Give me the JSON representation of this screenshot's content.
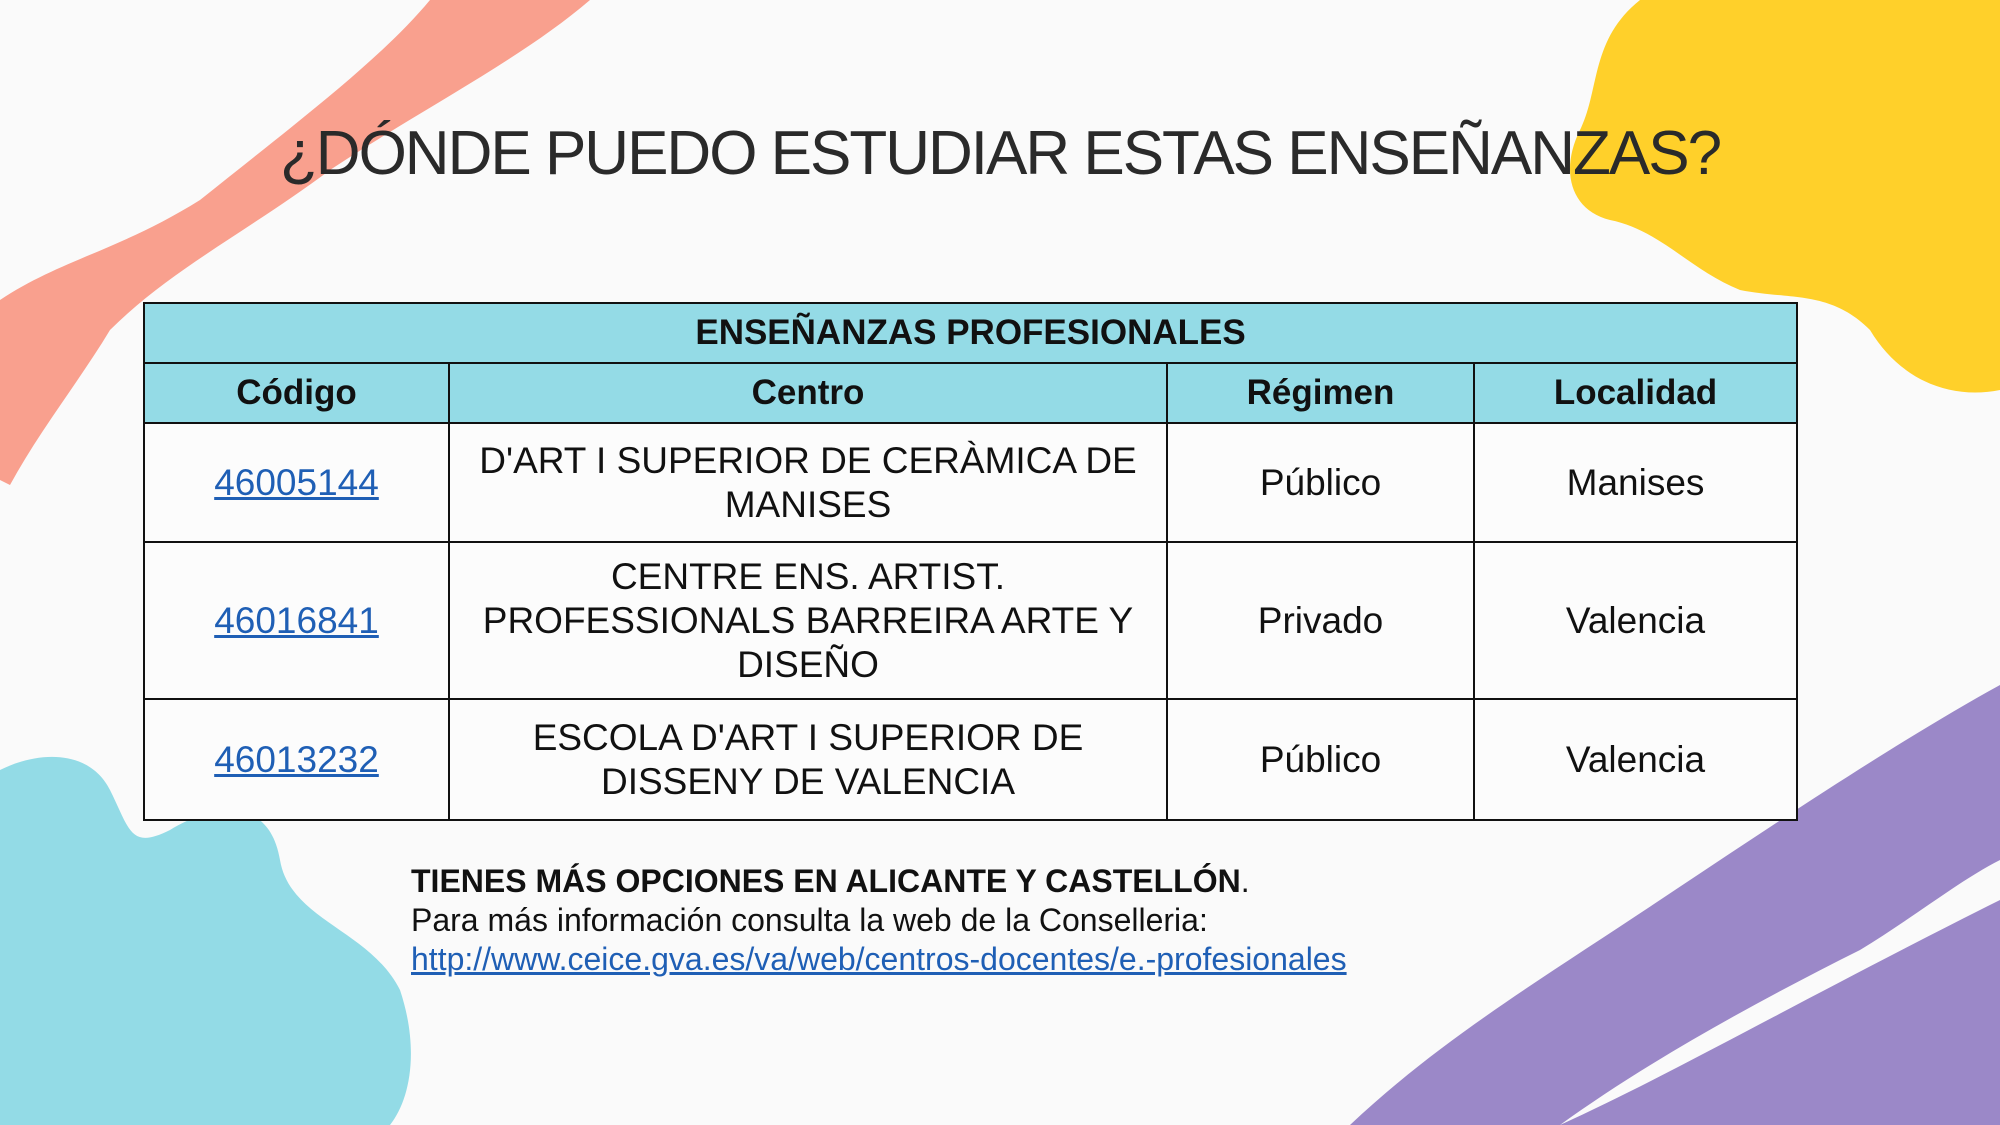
{
  "title": "¿DÓNDE PUEDO ESTUDIAR ESTAS ENSEÑANZAS?",
  "colors": {
    "pink": "#f9a08e",
    "yellow": "#ffd02a",
    "cyan": "#93dbe6",
    "purple": "#9b88c8",
    "header_bg": "#94dbe6",
    "link": "#1f5fb5"
  },
  "table": {
    "caption": "ENSEÑANZAS PROFESIONALES",
    "columns": [
      "Código",
      "Centro",
      "Régimen",
      "Localidad"
    ],
    "rows": [
      {
        "codigo": "46005144",
        "centro": "D'ART I SUPERIOR DE CERÀMICA DE MANISES",
        "regimen": "Público",
        "localidad": "Manises"
      },
      {
        "codigo": "46016841",
        "centro": "CENTRE ENS. ARTIST. PROFESSIONALS BARREIRA ARTE Y DISEÑO",
        "regimen": "Privado",
        "localidad": "Valencia"
      },
      {
        "codigo": "46013232",
        "centro": "ESCOLA D'ART I SUPERIOR DE DISSENY DE VALENCIA",
        "regimen": "Público",
        "localidad": "Valencia"
      }
    ]
  },
  "note": {
    "bold": "TIENES MÁS OPCIONES EN ALICANTE Y CASTELLÓN",
    "period": ".",
    "info": "Para más información consulta la web de la Conselleria:",
    "link": "http://www.ceice.gva.es/va/web/centros-docentes/e.-profesionales"
  }
}
